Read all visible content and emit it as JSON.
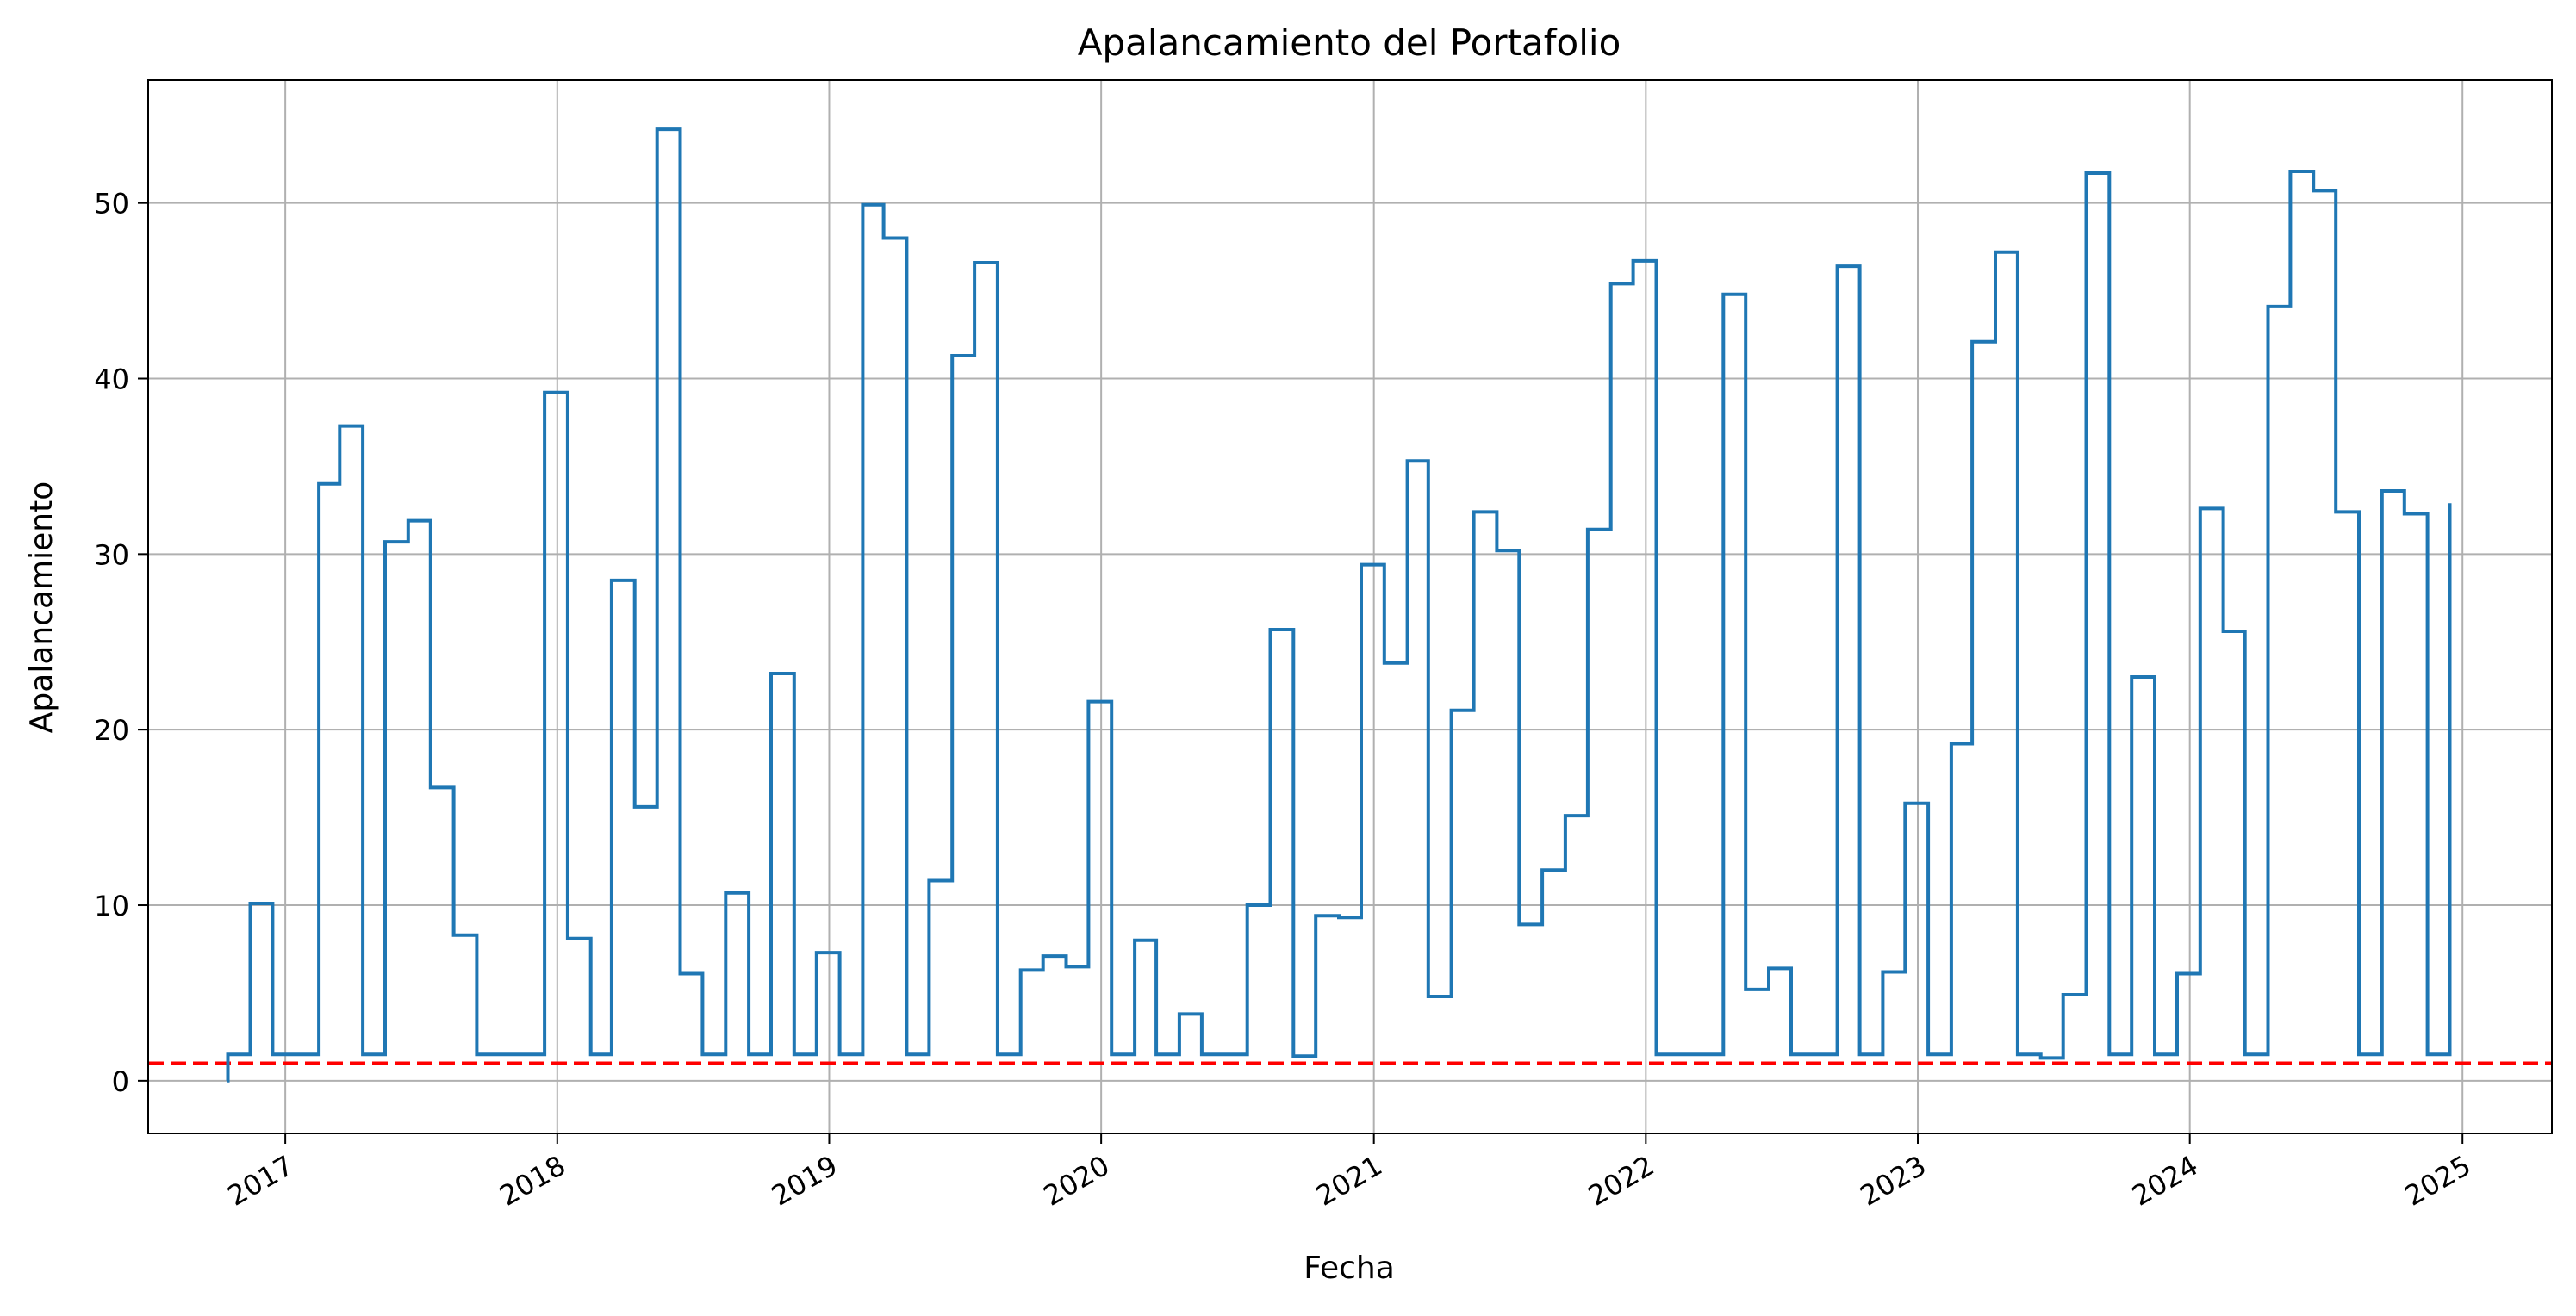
{
  "chart_data": {
    "type": "line",
    "title": "Apalancamiento del Portafolio",
    "xlabel": "Fecha",
    "ylabel": "Apalancamiento",
    "xlim": [
      "2016-07-01",
      "2025-05-01"
    ],
    "ylim": [
      -3,
      57
    ],
    "grid": true,
    "step": true,
    "x_ticks": [
      "2017-01-01",
      "2018-01-01",
      "2019-01-01",
      "2020-01-01",
      "2021-01-01",
      "2022-01-01",
      "2023-01-01",
      "2024-01-01",
      "2025-01-01"
    ],
    "x_tick_labels": [
      "2017",
      "2018",
      "2019",
      "2020",
      "2021",
      "2022",
      "2023",
      "2024",
      "2025"
    ],
    "y_ticks": [
      0,
      10,
      20,
      30,
      40,
      50
    ],
    "y_tick_labels": [
      "0",
      "10",
      "20",
      "30",
      "40",
      "50"
    ],
    "reference_line": {
      "y": 1,
      "color": "#ff0000",
      "style": "dashed"
    },
    "series": [
      {
        "color": "#1f77b4",
        "x": [
          "2016-10-15",
          "2016-10-16",
          "2016-11-15",
          "2016-12-15",
          "2017-02-15",
          "2017-03-15",
          "2017-04-15",
          "2017-05-15",
          "2017-06-15",
          "2017-07-15",
          "2017-08-15",
          "2017-09-15",
          "2017-10-15",
          "2017-12-15",
          "2018-01-15",
          "2018-02-15",
          "2018-03-15",
          "2018-04-15",
          "2018-05-15",
          "2018-06-15",
          "2018-07-15",
          "2018-08-15",
          "2018-09-15",
          "2018-10-15",
          "2018-11-15",
          "2018-12-15",
          "2019-01-15",
          "2019-02-15",
          "2019-03-15",
          "2019-04-15",
          "2019-05-15",
          "2019-06-15",
          "2019-07-15",
          "2019-08-15",
          "2019-09-15",
          "2019-10-15",
          "2019-11-15",
          "2019-12-15",
          "2020-01-15",
          "2020-02-15",
          "2020-03-15",
          "2020-04-15",
          "2020-05-15",
          "2020-06-15",
          "2020-07-15",
          "2020-08-15",
          "2020-09-15",
          "2020-10-15",
          "2020-11-15",
          "2020-12-15",
          "2021-01-15",
          "2021-02-15",
          "2021-03-15",
          "2021-04-15",
          "2021-05-15",
          "2021-06-15",
          "2021-07-15",
          "2021-08-15",
          "2021-09-15",
          "2021-10-15",
          "2021-11-15",
          "2021-12-15",
          "2022-01-15",
          "2022-02-15",
          "2022-03-15",
          "2022-04-15",
          "2022-05-15",
          "2022-06-15",
          "2022-07-15",
          "2022-08-15",
          "2022-09-15",
          "2022-10-15",
          "2022-11-15",
          "2022-12-15",
          "2023-01-15",
          "2023-02-15",
          "2023-03-15",
          "2023-04-15",
          "2023-05-15",
          "2023-06-15",
          "2023-07-15",
          "2023-08-15",
          "2023-09-15",
          "2023-10-15",
          "2023-11-15",
          "2023-12-15",
          "2024-01-15",
          "2024-02-15",
          "2024-03-15",
          "2024-04-15",
          "2024-05-15",
          "2024-06-15",
          "2024-07-15",
          "2024-08-15",
          "2024-09-15",
          "2024-10-15",
          "2024-11-15",
          "2024-12-15"
        ],
        "y": [
          0,
          1.5,
          10.1,
          1.5,
          34.0,
          37.3,
          1.5,
          30.7,
          31.9,
          16.7,
          8.3,
          1.5,
          1.5,
          39.2,
          8.1,
          1.5,
          28.5,
          15.6,
          54.2,
          6.1,
          1.5,
          10.7,
          1.5,
          23.2,
          1.5,
          7.3,
          1.5,
          49.9,
          48.0,
          1.5,
          11.4,
          41.3,
          46.6,
          1.5,
          6.3,
          7.1,
          6.5,
          21.6,
          1.5,
          8.0,
          1.5,
          3.8,
          1.5,
          1.5,
          10.0,
          25.7,
          1.4,
          9.4,
          9.3,
          29.4,
          23.8,
          35.3,
          4.8,
          21.1,
          32.4,
          30.2,
          8.9,
          12.0,
          15.1,
          31.4,
          45.4,
          46.7,
          1.5,
          1.5,
          1.5,
          44.8,
          5.2,
          6.4,
          1.5,
          1.5,
          46.4,
          1.5,
          6.2,
          15.8,
          1.5,
          19.2,
          42.1,
          47.2,
          1.5,
          1.3,
          4.9,
          51.7,
          1.5,
          23.0,
          1.5,
          6.1,
          32.6,
          25.6,
          1.5,
          44.1,
          51.8,
          50.7,
          32.4,
          1.5,
          33.6,
          32.3,
          1.5,
          32.9
        ]
      }
    ]
  }
}
